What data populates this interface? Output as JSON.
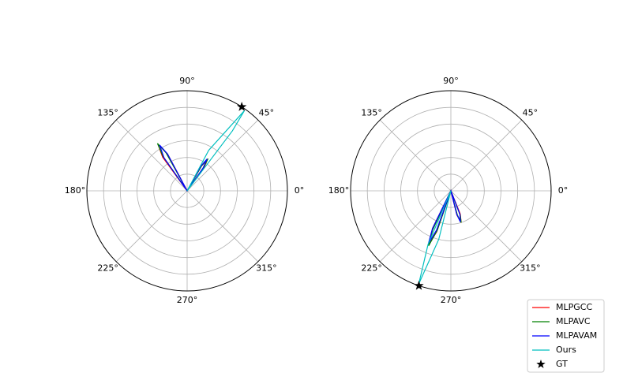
{
  "chart_data": [
    {
      "type": "polar",
      "rlim": [
        0,
        1.2
      ],
      "rticks": [
        0.2,
        0.4,
        0.6,
        0.8,
        1.0
      ],
      "thetaticks": [
        {
          "value": 0,
          "label": "0°"
        },
        {
          "value": 45,
          "label": "45°"
        },
        {
          "value": 90,
          "label": "90°"
        },
        {
          "value": 135,
          "label": "135°"
        },
        {
          "value": 180,
          "label": "180°"
        },
        {
          "value": 225,
          "label": "225°"
        },
        {
          "value": 270,
          "label": "270°"
        },
        {
          "value": 315,
          "label": "315°"
        }
      ],
      "grid": true,
      "series": [
        {
          "name": "MLPGCC",
          "color": "#ff0000",
          "marker": "line",
          "theta": [
            0,
            118,
            122,
            126,
            0,
            54,
            57,
            60,
            0
          ],
          "r": [
            0,
            0.5,
            0.66,
            0.5,
            0,
            0.34,
            0.45,
            0.34,
            0
          ]
        },
        {
          "name": "MLPAVC",
          "color": "#008000",
          "marker": "line",
          "theta": [
            0,
            119,
            122,
            125,
            0,
            55,
            57,
            60,
            0
          ],
          "r": [
            0,
            0.52,
            0.67,
            0.5,
            0,
            0.34,
            0.46,
            0.35,
            0
          ]
        },
        {
          "name": "MLPAVAM",
          "color": "#0000ff",
          "marker": "line",
          "theta": [
            0,
            118,
            121,
            125,
            0,
            55,
            58,
            61,
            0
          ],
          "r": [
            0,
            0.5,
            0.64,
            0.48,
            0,
            0.33,
            0.45,
            0.34,
            0
          ]
        },
        {
          "name": "Ours",
          "color": "#00bfbf",
          "marker": "line",
          "theta": [
            0,
            62,
            54.5,
            53,
            0
          ],
          "r": [
            0,
            0.55,
            1.18,
            0.9,
            0
          ]
        },
        {
          "name": "GT",
          "color": "#000000",
          "marker": "star",
          "theta": [
            57
          ],
          "r": [
            1.2
          ]
        }
      ]
    },
    {
      "type": "polar",
      "rlim": [
        0,
        1.2
      ],
      "rticks": [
        0.2,
        0.4,
        0.6,
        0.8,
        1.0
      ],
      "thetaticks": [
        {
          "value": 0,
          "label": "0°"
        },
        {
          "value": 45,
          "label": "45°"
        },
        {
          "value": 90,
          "label": "90°"
        },
        {
          "value": 135,
          "label": "135°"
        },
        {
          "value": 180,
          "label": "180°"
        },
        {
          "value": 225,
          "label": "225°"
        },
        {
          "value": 270,
          "label": "270°"
        },
        {
          "value": 315,
          "label": "315°"
        }
      ],
      "grid": true,
      "legend": "lower right",
      "series": [
        {
          "name": "MLPGCC",
          "color": "#ff0000",
          "marker": "line",
          "theta": [
            0,
            244,
            247.5,
            251,
            0,
            284,
            288,
            292,
            0
          ],
          "r": [
            0,
            0.5,
            0.7,
            0.52,
            0,
            0.3,
            0.4,
            0.3,
            0
          ]
        },
        {
          "name": "MLPAVC",
          "color": "#008000",
          "marker": "line",
          "theta": [
            0,
            245,
            248,
            251,
            0,
            285,
            288,
            291,
            0
          ],
          "r": [
            0,
            0.52,
            0.71,
            0.5,
            0,
            0.3,
            0.4,
            0.31,
            0
          ]
        },
        {
          "name": "MLPAVAM",
          "color": "#0000ff",
          "marker": "line",
          "theta": [
            0,
            244,
            247,
            250,
            0,
            284,
            287,
            291,
            0
          ],
          "r": [
            0,
            0.5,
            0.69,
            0.5,
            0,
            0.29,
            0.39,
            0.3,
            0
          ]
        },
        {
          "name": "Ours",
          "color": "#00bfbf",
          "marker": "line",
          "theta": [
            0,
            247,
            251,
            256,
            0
          ],
          "r": [
            0,
            0.7,
            1.18,
            0.6,
            0
          ]
        },
        {
          "name": "GT",
          "color": "#000000",
          "marker": "star",
          "theta": [
            251.4
          ],
          "r": [
            1.2
          ]
        }
      ]
    }
  ]
}
